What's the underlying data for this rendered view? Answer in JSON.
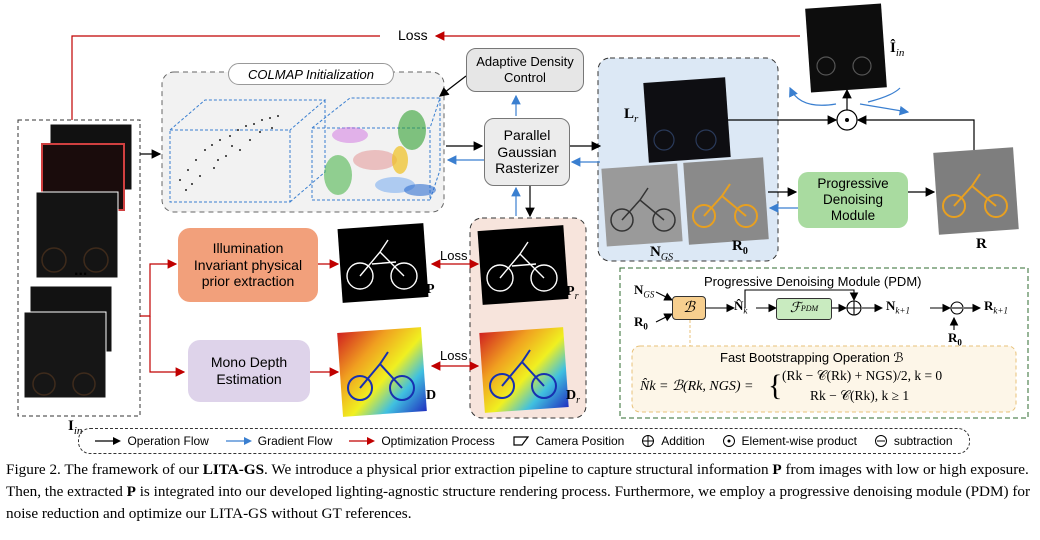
{
  "labels": {
    "loss_top": "Loss",
    "colmap": "COLMAP Initialization",
    "adaptive": "Adaptive Density Control",
    "rasterizer": "Parallel Gaussian Rasterizer",
    "illumination": "Illumination Invariant physical prior extraction",
    "mono_depth": "Mono Depth Estimation",
    "pdm_box": "Progressive Denoising Module",
    "loss_p": "Loss",
    "loss_d": "Loss",
    "dots": "..."
  },
  "symbols": {
    "I_in": "I",
    "I_in_sub": "in",
    "I_hat": "Î",
    "I_hat_sub": "in",
    "L_r": "L",
    "L_r_sub": "r",
    "N_GS": "N",
    "N_GS_sub": "GS",
    "R0": "R",
    "R0_sub": "0",
    "R": "R",
    "P": "P",
    "P_r": "P",
    "P_r_sub": "r",
    "D": "D",
    "D_r": "D",
    "D_r_sub": "r",
    "odot": "⊙"
  },
  "pdm": {
    "title": "Progressive Denoising Module (PDM)",
    "in_ngs": "N",
    "in_ngs_sub": "GS",
    "in_r0": "R",
    "in_r0_sub": "0",
    "b_op": "ℬ",
    "nk": "N̂",
    "nk_sub": "k",
    "f_pdm": "ℱ",
    "f_pdm_sub": "PDM",
    "nk1": "N",
    "nk1_sub": "k+1",
    "rk1": "R",
    "rk1_sub": "k+1",
    "r0_bottom": "R",
    "r0_bottom_sub": "0",
    "fast_title": "Fast Bootstrapping Operation ℬ",
    "eq_lhs": "N̂k = ℬ(Rk, NGS) =",
    "eq_case1": "(Rk − 𝒞(Rk) + NGS)/2,  k = 0",
    "eq_case2": "Rk − 𝒞(Rk),  k ≥ 1"
  },
  "legend": [
    {
      "label": "Operation Flow",
      "kind": "black-arrow"
    },
    {
      "label": "Gradient Flow",
      "kind": "blue-arrow"
    },
    {
      "label": "Optimization Process",
      "kind": "red-arrow"
    },
    {
      "label": "Camera Position",
      "kind": "camera"
    },
    {
      "label": "Addition",
      "kind": "oplus"
    },
    {
      "label": "Element-wise product",
      "kind": "odot"
    },
    {
      "label": "subtraction",
      "kind": "ominus"
    }
  ],
  "caption": {
    "fig": "Figure 2.",
    "t1": " The framework of our ",
    "name": "LITA-GS",
    "t2": ". We introduce a physical prior extraction pipeline to capture structural information ",
    "P1": "P",
    "t3": " from images with low or high exposure. Then, the extracted ",
    "P2": "P",
    "t4": " is integrated into our developed lighting-agnostic structure rendering process. Furthermore, we employ a progressive denoising module (PDM) for noise reduction and optimize our LITA-GS without GT references."
  },
  "colors": {
    "flow_black": "#000000",
    "flow_blue": "#3a7fd0",
    "flow_red": "#c00000",
    "illum_fill": "#f2a07b",
    "mono_fill": "#ded3ea",
    "pdm_fill": "#a9dba0",
    "render_panel": "#dce8f5",
    "prior_panel": "#f7e4dc",
    "pdm_panel_border": "#2f6b2f",
    "bootstrap_border": "#e8c27a"
  }
}
